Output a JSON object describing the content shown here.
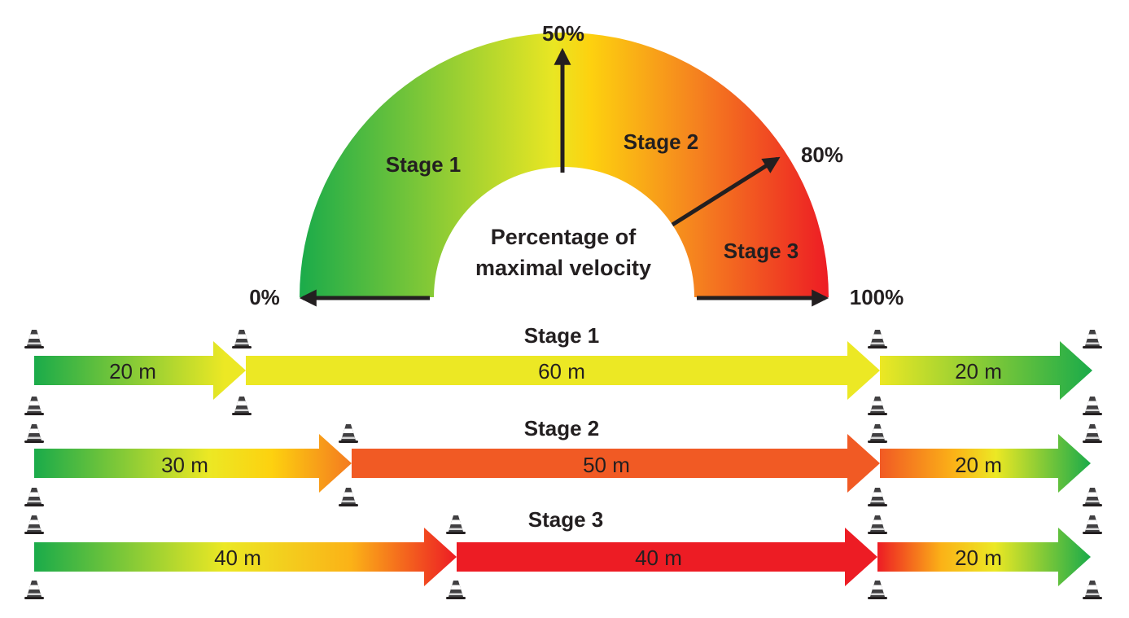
{
  "gauge": {
    "center_label_line1": "Percentage of",
    "center_label_line2": "maximal velocity",
    "tick_0": "0%",
    "tick_50": "50%",
    "tick_80": "80%",
    "tick_100": "100%",
    "zone_1": "Stage 1",
    "zone_2": "Stage 2",
    "zone_3": "Stage 3",
    "gradient_colors": [
      "#1aab4a",
      "#e9e623",
      "#fdd10f",
      "#f5821f",
      "#ed1c24"
    ]
  },
  "rows": [
    {
      "title": "Stage 1",
      "segments": [
        {
          "label": "20 m",
          "meters": 20,
          "fill": "green-to-yellow"
        },
        {
          "label": "60 m",
          "meters": 60,
          "fill": "#ece824"
        },
        {
          "label": "20 m",
          "meters": 20,
          "fill": "yellow-to-green"
        }
      ]
    },
    {
      "title": "Stage 2",
      "segments": [
        {
          "label": "30 m",
          "meters": 30,
          "fill": "green-to-orange"
        },
        {
          "label": "50 m",
          "meters": 50,
          "fill": "#f15a24"
        },
        {
          "label": "20 m",
          "meters": 20,
          "fill": "orange-to-green"
        }
      ]
    },
    {
      "title": "Stage 3",
      "segments": [
        {
          "label": "40 m",
          "meters": 40,
          "fill": "green-to-red"
        },
        {
          "label": "40 m",
          "meters": 40,
          "fill": "#ed1c24"
        },
        {
          "label": "20 m",
          "meters": 20,
          "fill": "red-to-green"
        }
      ]
    }
  ],
  "icons": {
    "marker": "traffic-cone-icon"
  }
}
